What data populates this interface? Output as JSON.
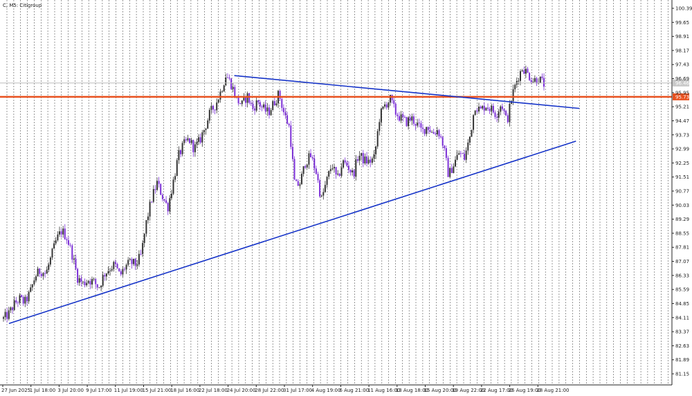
{
  "chart_data": {
    "type": "candlestick",
    "title": "C, M5:  Citigroup",
    "ylim": [
      80.5,
      100.6
    ],
    "y_ticks": [
      "100.39",
      "99.65",
      "98.91",
      "98.17",
      "97.43",
      "96.69",
      "95.95",
      "95.21",
      "94.47",
      "93.73",
      "92.99",
      "92.25",
      "91.51",
      "90.77",
      "90.03",
      "89.29",
      "88.55",
      "87.81",
      "87.07",
      "86.33",
      "85.59",
      "84.85",
      "84.11",
      "83.37",
      "82.63",
      "81.89",
      "81.15"
    ],
    "x_ticks": [
      "27 Jun 2025",
      "1 Jul 18:00",
      "3 Jul 20:00",
      "9 Jul 17:00",
      "11 Jul 19:00",
      "15 Jul 21:00",
      "18 Jul 16:00",
      "22 Jul 18:00",
      "24 Jul 20:00",
      "28 Jul 22:00",
      "31 Jul 17:00",
      "4 Aug 19:00",
      "6 Aug 21:00",
      "11 Aug 16:00",
      "13 Aug 18:00",
      "15 Aug 20:00",
      "19 Aug 22:00",
      "22 Aug 17:00",
      "26 Aug 19:00",
      "28 Aug 21:00"
    ],
    "price_path": [
      84.05,
      84.3,
      84.8,
      85.1,
      84.9,
      85.4,
      86.3,
      86.6,
      86.4,
      87.3,
      88.2,
      88.7,
      88.3,
      87.4,
      86.2,
      85.9,
      86.1,
      86.0,
      85.7,
      86.4,
      86.7,
      86.9,
      86.3,
      86.8,
      87.0,
      86.9,
      87.4,
      89.2,
      90.4,
      91.2,
      90.5,
      89.9,
      91.2,
      92.6,
      93.2,
      93.5,
      93.0,
      93.4,
      94.1,
      94.9,
      95.3,
      96.0,
      96.9,
      96.4,
      95.6,
      95.3,
      95.8,
      95.1,
      95.5,
      95.1,
      94.9,
      95.4,
      95.9,
      94.8,
      94.1,
      91.0,
      91.2,
      92.3,
      92.6,
      91.8,
      90.3,
      91.3,
      92.2,
      91.3,
      92.3,
      92.1,
      91.6,
      92.7,
      92.4,
      92.3,
      92.5,
      94.7,
      95.3,
      95.6,
      94.9,
      94.6,
      94.4,
      94.6,
      94.3,
      93.9,
      94.2,
      93.8,
      94.0,
      93.2,
      91.6,
      92.2,
      92.8,
      92.5,
      93.6,
      95.3,
      95.0,
      95.3,
      95.1,
      94.8,
      95.4,
      94.4,
      95.8,
      96.7,
      97.3,
      96.9,
      96.6,
      96.7,
      96.4
    ],
    "current_price": 96.46,
    "horizontal_level": 95.73,
    "trendlines": [
      {
        "from": {
          "date": "27 Jun 2025",
          "price": 83.8
        },
        "to": {
          "date": "28 Aug 21:00",
          "price": 93.4
        }
      },
      {
        "from": {
          "date": "24 Jul 20:00",
          "price": 96.85
        },
        "to": {
          "date": "28 Aug 21:00",
          "price": 95.12
        }
      }
    ],
    "grid": "vertical-dashed",
    "colors": {
      "bull": "#333333",
      "bear": "#7b2fd6",
      "trendline": "#1432c8",
      "level": "#e8501e",
      "grid": "#555555",
      "current_price": "#bbbbbb"
    }
  }
}
